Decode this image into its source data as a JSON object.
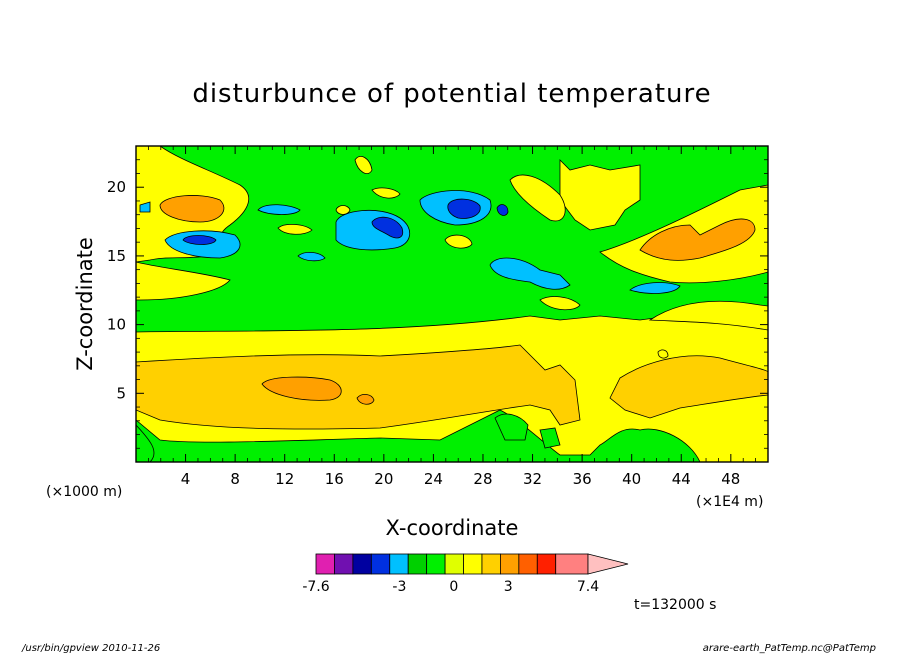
{
  "chart_data": {
    "type": "heatmap",
    "title": "disturbunce of potential temperature",
    "xlabel": "X-coordinate",
    "ylabel": "Z-coordinate",
    "x_unit_left": "(×1000 m)",
    "x_unit_right": "(×1E4 m)",
    "xlim": [
      0,
      51
    ],
    "ylim": [
      0,
      23
    ],
    "x_ticks": [
      "4",
      "8",
      "12",
      "16",
      "20",
      "24",
      "28",
      "32",
      "36",
      "40",
      "44",
      "48"
    ],
    "y_ticks": [
      "5",
      "10",
      "15",
      "20"
    ],
    "time_label": "t=132000 s",
    "colorbar": {
      "levels": [
        -7.6,
        -6.5,
        -5.4,
        -4.3,
        -3.2,
        -2.1,
        -1.0,
        0.1,
        1.2,
        2.3,
        3.4,
        4.5,
        5.6,
        7.4
      ],
      "tick_labels": [
        "-7.6",
        "-3",
        "0",
        "3",
        "7.4"
      ],
      "colors": [
        "#e020b0",
        "#7010b0",
        "#0000a0",
        "#0030e0",
        "#00c0ff",
        "#00d000",
        "#00f000",
        "#e0ff00",
        "#ffff00",
        "#ffd000",
        "#ffa000",
        "#ff6000",
        "#ff2000",
        "#ff8080",
        "#ffc0c0"
      ]
    },
    "regions_note": "",
    "features": [
      {
        "x": 4.5,
        "z": 18.3,
        "value": 3.5
      },
      {
        "x": 4.2,
        "z": 16.2,
        "value": -3.5
      },
      {
        "x": 21.5,
        "z": 17.4,
        "value": -3.5
      },
      {
        "x": 26.0,
        "z": 18.5,
        "value": -4.0
      },
      {
        "x": 29.0,
        "z": 18.5,
        "value": -2.5
      },
      {
        "x": 42.5,
        "z": 15.7,
        "value": 3.0
      },
      {
        "x": 45.5,
        "z": 16.0,
        "value": 3.5
      },
      {
        "x": 14.5,
        "z": 5.4,
        "value": 3.0
      },
      {
        "x": 18.5,
        "z": 4.6,
        "value": 2.5
      }
    ]
  },
  "footer": {
    "left": "/usr/bin/gpview  2010-11-26",
    "right": "arare-earth_PatTemp.nc@PatTemp"
  }
}
